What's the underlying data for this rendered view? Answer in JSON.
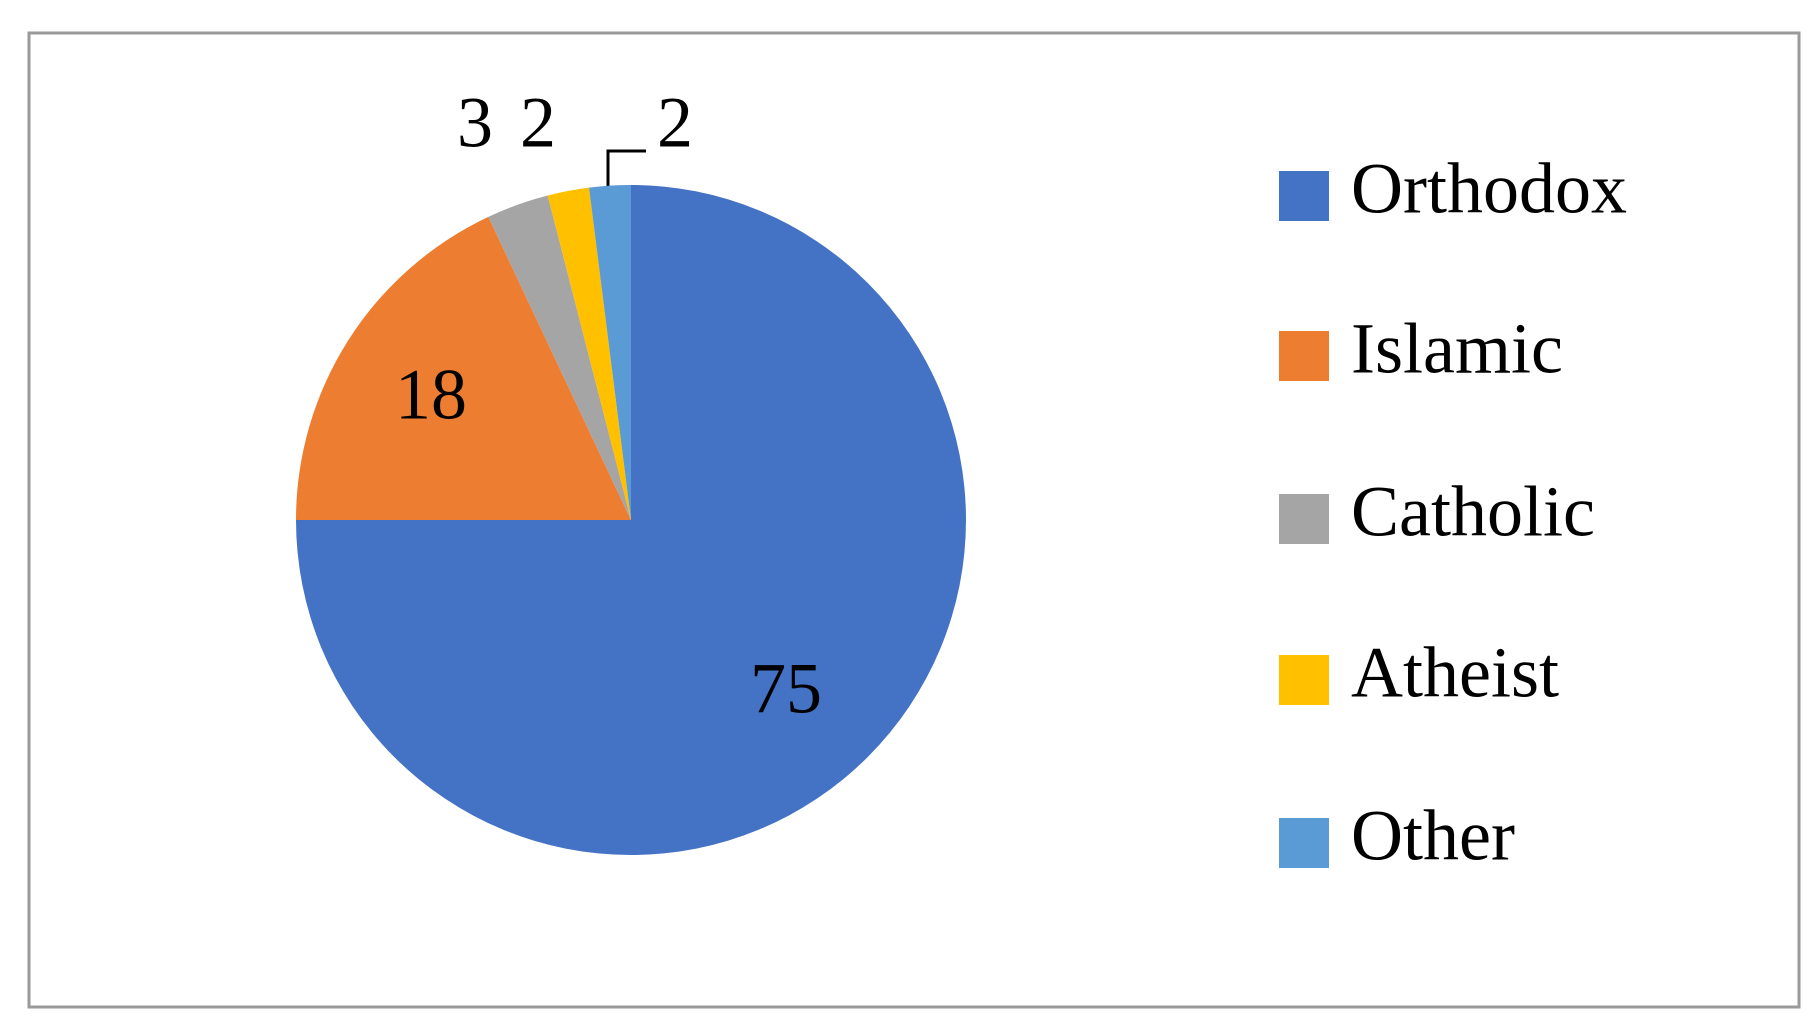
{
  "chart_data": {
    "type": "pie",
    "categories": [
      "Orthodox",
      "Islamic",
      "Catholic",
      "Atheist",
      "Other"
    ],
    "values": [
      75,
      18,
      3,
      2,
      2
    ],
    "colors": [
      "#4472c4",
      "#ed7d31",
      "#a5a5a5",
      "#ffc000",
      "#5b9bd5"
    ],
    "legend": "right"
  }
}
